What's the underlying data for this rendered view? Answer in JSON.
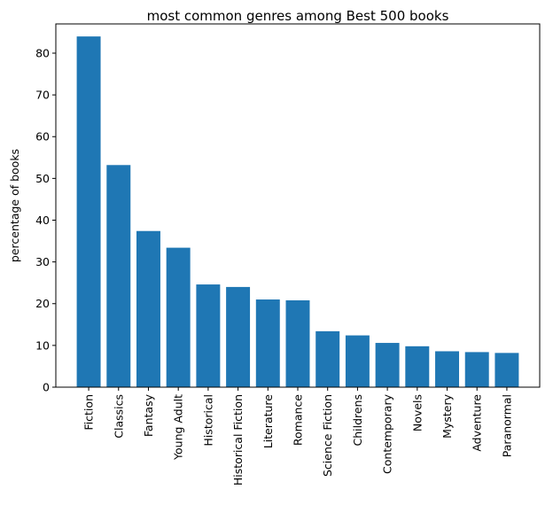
{
  "chart_data": {
    "type": "bar",
    "title": "most common genres among Best 500 books",
    "xlabel": "",
    "ylabel": "percentage of books",
    "categories": [
      "Fiction",
      "Classics",
      "Fantasy",
      "Young Adult",
      "Historical",
      "Historical Fiction",
      "Literature",
      "Romance",
      "Science Fiction",
      "Childrens",
      "Contemporary",
      "Novels",
      "Mystery",
      "Adventure",
      "Paranormal"
    ],
    "values": [
      84.0,
      53.2,
      37.4,
      33.4,
      24.6,
      24.0,
      21.0,
      20.8,
      13.4,
      12.4,
      10.6,
      9.8,
      8.6,
      8.4,
      8.2
    ],
    "ylim": [
      0,
      87
    ],
    "yticks": [
      0,
      10,
      20,
      30,
      40,
      50,
      60,
      70,
      80
    ],
    "bar_color": "#1f77b4",
    "grid": false,
    "legend": "none"
  }
}
